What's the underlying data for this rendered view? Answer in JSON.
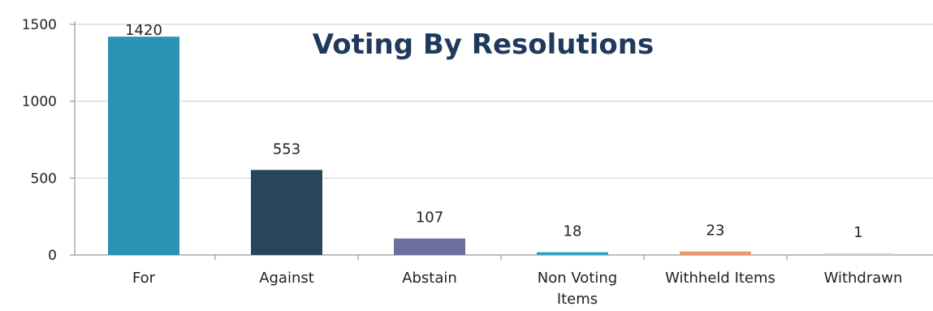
{
  "chart_data": {
    "type": "bar",
    "title": "Voting By Resolutions",
    "categories": [
      "For",
      "Against",
      "Abstain",
      "Non Voting Items",
      "Withheld Items",
      "Withdrawn"
    ],
    "category_lines": [
      [
        "For"
      ],
      [
        "Against"
      ],
      [
        "Abstain"
      ],
      [
        "Non Voting",
        "Items"
      ],
      [
        "Withheld Items"
      ],
      [
        "Withdrawn"
      ]
    ],
    "values": [
      1420,
      553,
      107,
      18,
      23,
      1
    ],
    "value_labels": [
      "1420",
      "553",
      "107",
      "18",
      "23",
      "1"
    ],
    "colors": [
      "#2a93b4",
      "#27465c",
      "#6b6f9e",
      "#2f9fc4",
      "#e89a6a",
      "#cfcfcf"
    ],
    "ylim": [
      0,
      1500
    ],
    "yticks": [
      0,
      500,
      1000,
      1500
    ],
    "ytick_labels": [
      "0",
      "500",
      "1000",
      "1500"
    ],
    "grid": true,
    "xlabel": "",
    "ylabel": ""
  }
}
